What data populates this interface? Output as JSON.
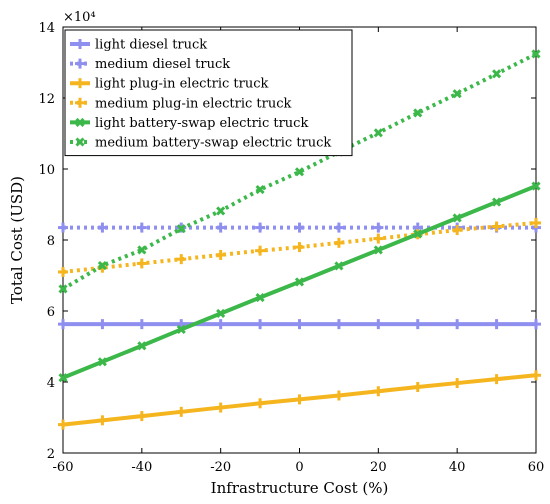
{
  "chart_data": {
    "type": "line",
    "xlabel": "Infrastructure Cost (%)",
    "ylabel": "Total Cost (USD)",
    "y_multiplier_label": "×10⁴",
    "xlim": [
      -60,
      60
    ],
    "ylim": [
      2,
      14
    ],
    "x_ticks": [
      -60,
      -40,
      -20,
      0,
      20,
      40,
      60
    ],
    "y_ticks": [
      2,
      4,
      6,
      8,
      10,
      12,
      14
    ],
    "grid": false,
    "legend_position": "top-left",
    "x": [
      -60,
      -50,
      -40,
      -30,
      -20,
      -10,
      0,
      10,
      20,
      30,
      40,
      50,
      60
    ],
    "series": [
      {
        "name": "light diesel truck",
        "color": "#8f8ff0",
        "style": "solid",
        "marker": "plus",
        "values": [
          5.63,
          5.63,
          5.63,
          5.63,
          5.63,
          5.63,
          5.63,
          5.63,
          5.63,
          5.63,
          5.63,
          5.63,
          5.63
        ]
      },
      {
        "name": "medium diesel truck",
        "color": "#8f8ff0",
        "style": "dotted",
        "marker": "plus",
        "values": [
          8.35,
          8.35,
          8.35,
          8.35,
          8.35,
          8.35,
          8.35,
          8.35,
          8.35,
          8.35,
          8.35,
          8.35,
          8.35
        ]
      },
      {
        "name": "light plug-in electric truck",
        "color": "#f5b51e",
        "style": "solid",
        "marker": "plus",
        "values": [
          2.8,
          2.92,
          3.04,
          3.16,
          3.28,
          3.4,
          3.51,
          3.62,
          3.74,
          3.86,
          3.97,
          4.08,
          4.19
        ]
      },
      {
        "name": "medium plug-in electric truck",
        "color": "#f5b51e",
        "style": "dotted",
        "marker": "plus",
        "values": [
          7.1,
          7.22,
          7.34,
          7.46,
          7.58,
          7.7,
          7.8,
          7.92,
          8.04,
          8.16,
          8.28,
          8.38,
          8.48
        ]
      },
      {
        "name": "light battery-swap electric truck",
        "color": "#3cb84a",
        "style": "solid",
        "marker": "x",
        "values": [
          4.12,
          4.57,
          5.02,
          5.48,
          5.93,
          6.38,
          6.82,
          7.27,
          7.72,
          8.17,
          8.62,
          9.07,
          9.52
        ]
      },
      {
        "name": "medium battery-swap electric truck",
        "color": "#3cb84a",
        "style": "dotted",
        "marker": "x",
        "values": [
          6.62,
          7.28,
          7.72,
          8.32,
          8.82,
          9.42,
          9.92,
          10.48,
          11.02,
          11.58,
          12.12,
          12.68,
          13.24
        ]
      }
    ]
  }
}
